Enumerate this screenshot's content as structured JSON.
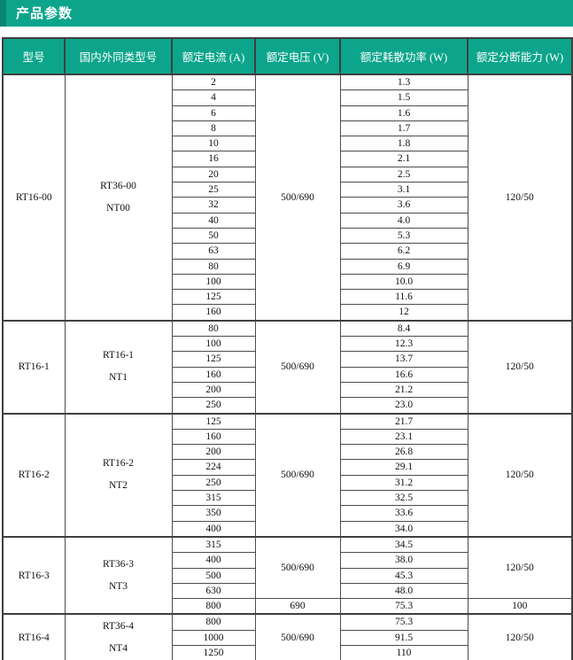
{
  "page": {
    "title": "产品参数"
  },
  "colors": {
    "accent_teal": "#0ca58c",
    "accent_teal_dark": "#0a8473",
    "header_text": "#ffffff",
    "border_dark": "#3f3f3f",
    "border_inner": "#4c4c4c",
    "body_text": "#111111"
  },
  "table": {
    "headers": [
      "型号",
      "国内外同类型号",
      "额定电流 (A)",
      "额定电压 (V)",
      "额定耗散功率 (W)",
      "额定分断能力 (W)"
    ],
    "groups": [
      {
        "model": "RT16-00",
        "similar_models": [
          "RT36-00",
          "NT00"
        ],
        "rows": [
          {
            "current": "2",
            "power": "1.3"
          },
          {
            "current": "4",
            "power": "1.5"
          },
          {
            "current": "6",
            "power": "1.6"
          },
          {
            "current": "8",
            "power": "1.7"
          },
          {
            "current": "10",
            "power": "1.8"
          },
          {
            "current": "16",
            "power": "2.1"
          },
          {
            "current": "20",
            "power": "2.5"
          },
          {
            "current": "25",
            "power": "3.1"
          },
          {
            "current": "32",
            "power": "3.6"
          },
          {
            "current": "40",
            "power": "4.0"
          },
          {
            "current": "50",
            "power": "5.3"
          },
          {
            "current": "63",
            "power": "6.2"
          },
          {
            "current": "80",
            "power": "6.9"
          },
          {
            "current": "100",
            "power": "10.0"
          },
          {
            "current": "125",
            "power": "11.6"
          },
          {
            "current": "160",
            "power": "12"
          }
        ],
        "voltage_spans": [
          {
            "label": "500/690",
            "rows": 16
          }
        ],
        "breaking_spans": [
          {
            "label": "120/50",
            "rows": 16
          }
        ]
      },
      {
        "model": "RT16-1",
        "similar_models": [
          "RT16-1",
          "NT1"
        ],
        "rows": [
          {
            "current": "80",
            "power": "8.4"
          },
          {
            "current": "100",
            "power": "12.3"
          },
          {
            "current": "125",
            "power": "13.7"
          },
          {
            "current": "160",
            "power": "16.6"
          },
          {
            "current": "200",
            "power": "21.2"
          },
          {
            "current": "250",
            "power": "23.0"
          }
        ],
        "voltage_spans": [
          {
            "label": "500/690",
            "rows": 6
          }
        ],
        "breaking_spans": [
          {
            "label": "120/50",
            "rows": 6
          }
        ]
      },
      {
        "model": "RT16-2",
        "similar_models": [
          "RT16-2",
          "NT2"
        ],
        "rows": [
          {
            "current": "125",
            "power": "21.7"
          },
          {
            "current": "160",
            "power": "23.1"
          },
          {
            "current": "200",
            "power": "26.8"
          },
          {
            "current": "224",
            "power": "29.1"
          },
          {
            "current": "250",
            "power": "31.2"
          },
          {
            "current": "315",
            "power": "32.5"
          },
          {
            "current": "350",
            "power": "33.6"
          },
          {
            "current": "400",
            "power": "34.0"
          }
        ],
        "voltage_spans": [
          {
            "label": "500/690",
            "rows": 8
          }
        ],
        "breaking_spans": [
          {
            "label": "120/50",
            "rows": 8
          }
        ]
      },
      {
        "model": "RT16-3",
        "similar_models": [
          "RT36-3",
          "NT3"
        ],
        "rows": [
          {
            "current": "315",
            "power": "34.5"
          },
          {
            "current": "400",
            "power": "38.0"
          },
          {
            "current": "500",
            "power": "45.3"
          },
          {
            "current": "630",
            "power": "48.0"
          },
          {
            "current": "800",
            "power": "75.3"
          }
        ],
        "voltage_spans": [
          {
            "label": "500/690",
            "rows": 4
          },
          {
            "label": "690",
            "rows": 1
          }
        ],
        "breaking_spans": [
          {
            "label": "120/50",
            "rows": 4
          },
          {
            "label": "100",
            "rows": 1
          }
        ]
      },
      {
        "model": "RT16-4",
        "similar_models": [
          "RT36-4",
          "NT4"
        ],
        "rows": [
          {
            "current": "800",
            "power": "75.3"
          },
          {
            "current": "1000",
            "power": "91.5"
          },
          {
            "current": "1250",
            "power": "110"
          }
        ],
        "voltage_spans": [
          {
            "label": "500/690",
            "rows": 3
          }
        ],
        "breaking_spans": [
          {
            "label": "120/50",
            "rows": 3
          }
        ]
      }
    ]
  }
}
